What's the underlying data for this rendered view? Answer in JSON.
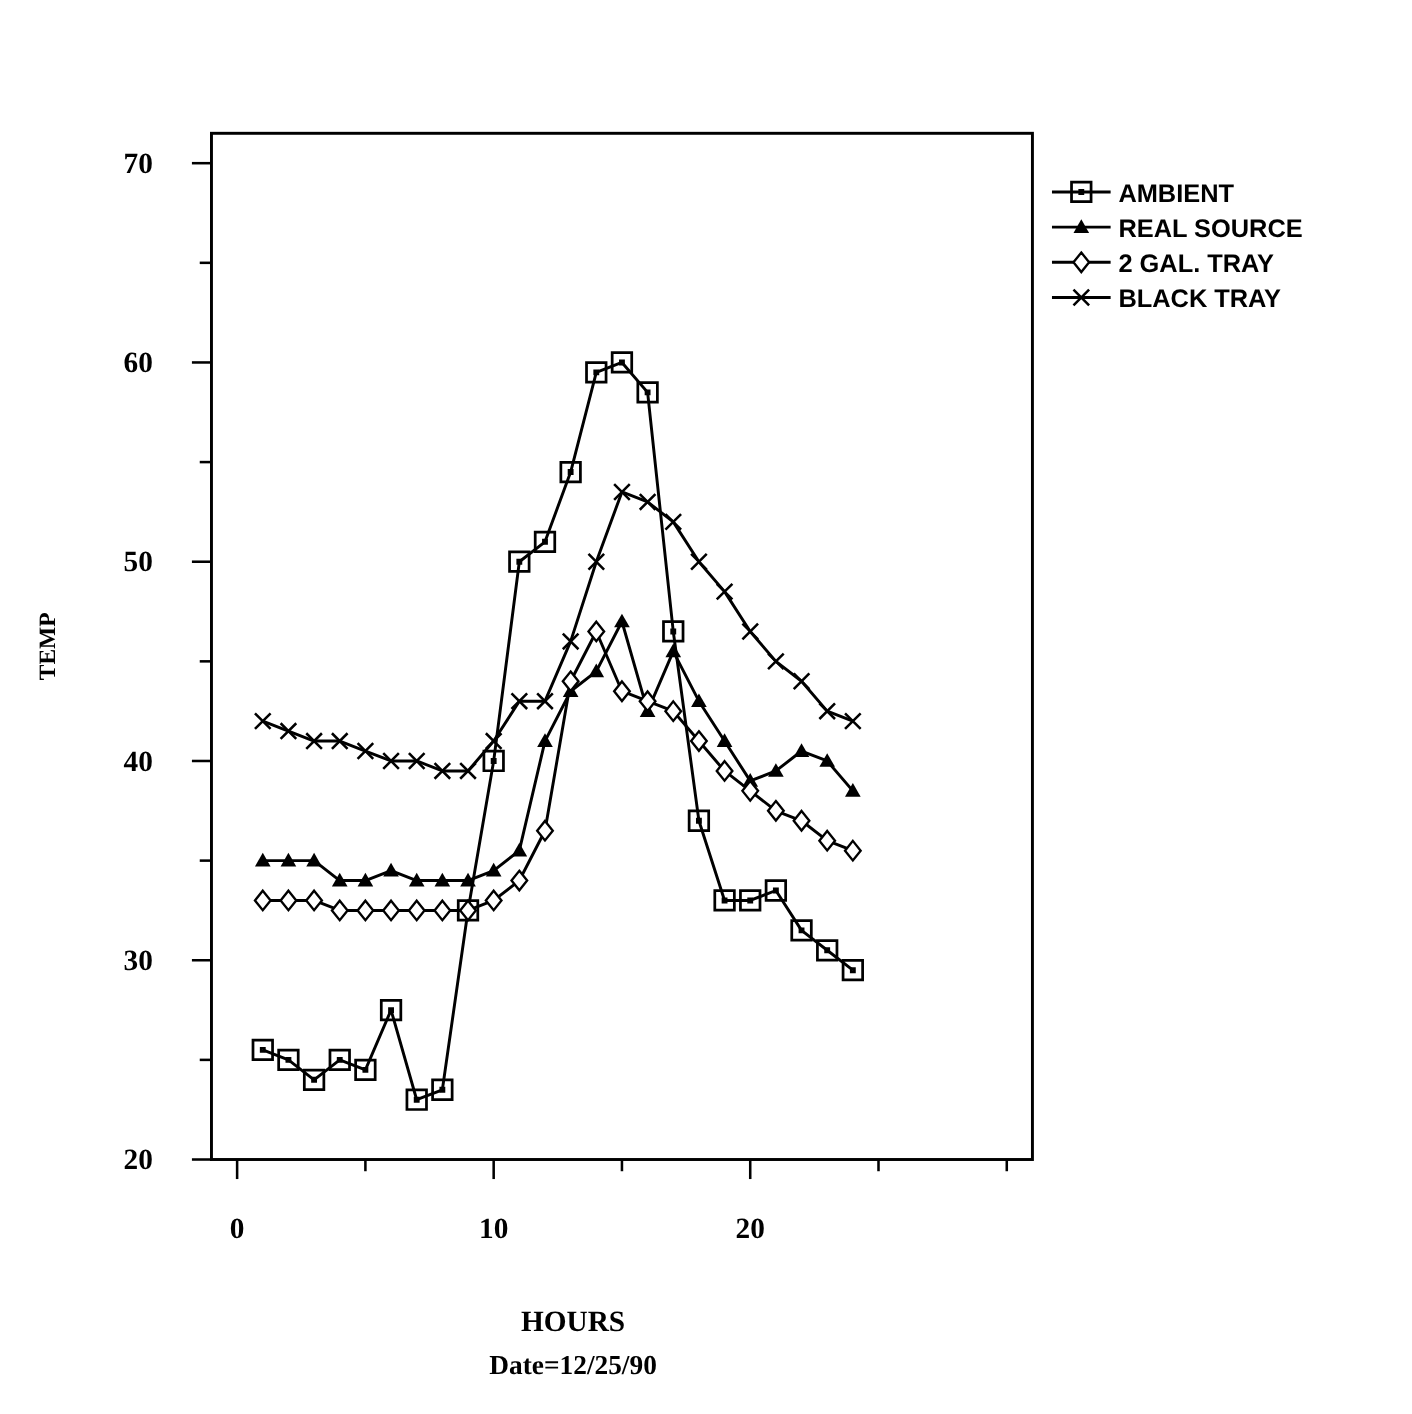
{
  "chart_data": {
    "type": "line",
    "xlabel": "HOURS",
    "annotations": [
      "Date=12/25/90"
    ],
    "ylabel": "TEMP",
    "x": [
      1,
      2,
      3,
      4,
      5,
      6,
      7,
      8,
      9,
      10,
      11,
      12,
      13,
      14,
      15,
      16,
      17,
      18,
      19,
      20,
      21,
      22,
      23,
      24
    ],
    "xlim": [
      -1,
      31
    ],
    "xticks": [
      0,
      {
        "value": 5,
        "label": null
      },
      10,
      {
        "value": 15,
        "label": null
      },
      20,
      {
        "value": 25,
        "label": null
      },
      {
        "value": 30,
        "label": null
      }
    ],
    "ylim": [
      20,
      71.5
    ],
    "yticks": [
      20,
      {
        "value": 25,
        "label": null
      },
      30,
      {
        "value": 35,
        "label": null
      },
      40,
      {
        "value": 45,
        "label": null
      },
      50,
      {
        "value": 55,
        "label": null
      },
      60,
      {
        "value": 65,
        "label": null
      },
      70
    ],
    "grid": false,
    "legend": "top right",
    "line_style": "solid",
    "series": [
      {
        "name": "AMBIENT",
        "color": "#000000",
        "marker": "square",
        "values": [
          25.5,
          25,
          24,
          25,
          24.5,
          27.5,
          23,
          23.5,
          32.5,
          40,
          50,
          51,
          54.5,
          59.5,
          60,
          58.5,
          46.5,
          37,
          33,
          33,
          33.5,
          31.5,
          30.5,
          29.5
        ]
      },
      {
        "name": "REAL SOURCE",
        "color": "#000000",
        "marker": "triangle",
        "values": [
          35,
          35,
          35,
          34,
          34,
          34.5,
          34,
          34,
          34,
          34.5,
          35.5,
          41,
          43.5,
          44.5,
          47,
          42.5,
          45.5,
          43,
          41,
          39,
          39.5,
          40.5,
          40,
          38.5
        ]
      },
      {
        "name": "2 GAL. TRAY",
        "color": "#000000",
        "marker": "diamond",
        "values": [
          33,
          33,
          33,
          32.5,
          32.5,
          32.5,
          32.5,
          32.5,
          32.5,
          33,
          34,
          36.5,
          44,
          46.5,
          43.5,
          43,
          42.5,
          41,
          39.5,
          38.5,
          37.5,
          37,
          36,
          35.5
        ]
      },
      {
        "name": "BLACK TRAY",
        "color": "#000000",
        "marker": "cross",
        "values": [
          42,
          41.5,
          41,
          41,
          40.5,
          40,
          40,
          39.5,
          39.5,
          41,
          43,
          43,
          46,
          50,
          53.5,
          53,
          52,
          50,
          48.5,
          46.5,
          45,
          44,
          42.5,
          42
        ]
      }
    ]
  }
}
